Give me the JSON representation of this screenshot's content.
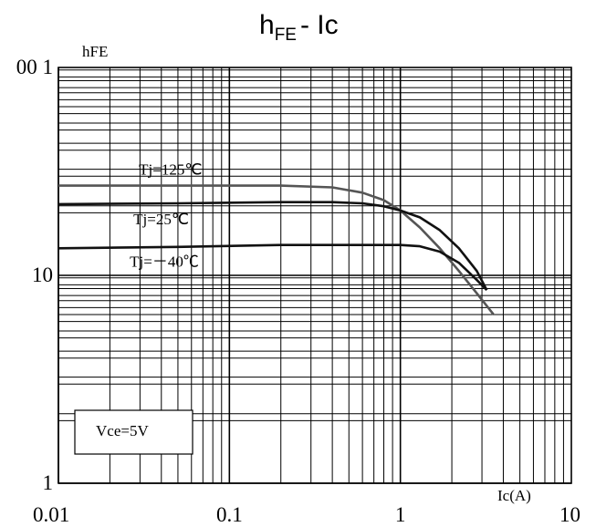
{
  "chart_data": {
    "type": "line",
    "title_main": "h",
    "title_sub": "FE",
    "title_rest": "- Ic",
    "ylabel": "hFE",
    "xlabel": "Ic(A)",
    "x_scale": "log",
    "y_scale": "log",
    "xlim": [
      0.01,
      10
    ],
    "ylim": [
      1,
      100
    ],
    "grid": true,
    "x_ticks": [
      {
        "value": 0.01,
        "label": "0.01"
      },
      {
        "value": 0.1,
        "label": "0.1"
      },
      {
        "value": 1,
        "label": "1"
      },
      {
        "value": 10,
        "label": "10"
      }
    ],
    "y_ticks": [
      {
        "value": 100,
        "label": "00 1"
      },
      {
        "value": 10,
        "label": "10"
      },
      {
        "value": 1,
        "label": "1"
      }
    ],
    "series": [
      {
        "name": "Tj=125℃",
        "color": "#555555",
        "x": [
          0.01,
          0.05,
          0.2,
          0.4,
          0.6,
          0.8,
          1.0,
          1.3,
          1.7,
          2.2,
          2.8,
          3.5
        ],
        "y": [
          27,
          27,
          27,
          26.5,
          25,
          23,
          20.5,
          17,
          13.5,
          10.5,
          8.2,
          6.5
        ]
      },
      {
        "name": "Tj=25℃",
        "color": "#111111",
        "x": [
          0.01,
          0.05,
          0.2,
          0.4,
          0.6,
          0.8,
          1.0,
          1.3,
          1.7,
          2.2,
          2.8,
          3.2
        ],
        "y": [
          22,
          22.2,
          22.5,
          22.5,
          22.2,
          21.5,
          20.5,
          19,
          16.5,
          13.5,
          10.5,
          8.5
        ]
      },
      {
        "name": "Tj=－40℃",
        "color": "#111111",
        "x": [
          0.01,
          0.05,
          0.2,
          0.5,
          0.8,
          1.0,
          1.3,
          1.7,
          2.2,
          2.8,
          3.2
        ],
        "y": [
          13.5,
          13.7,
          14,
          14,
          14,
          14,
          13.8,
          13,
          11.5,
          9.5,
          8.5
        ]
      }
    ],
    "annotation": "Vce=5V"
  }
}
